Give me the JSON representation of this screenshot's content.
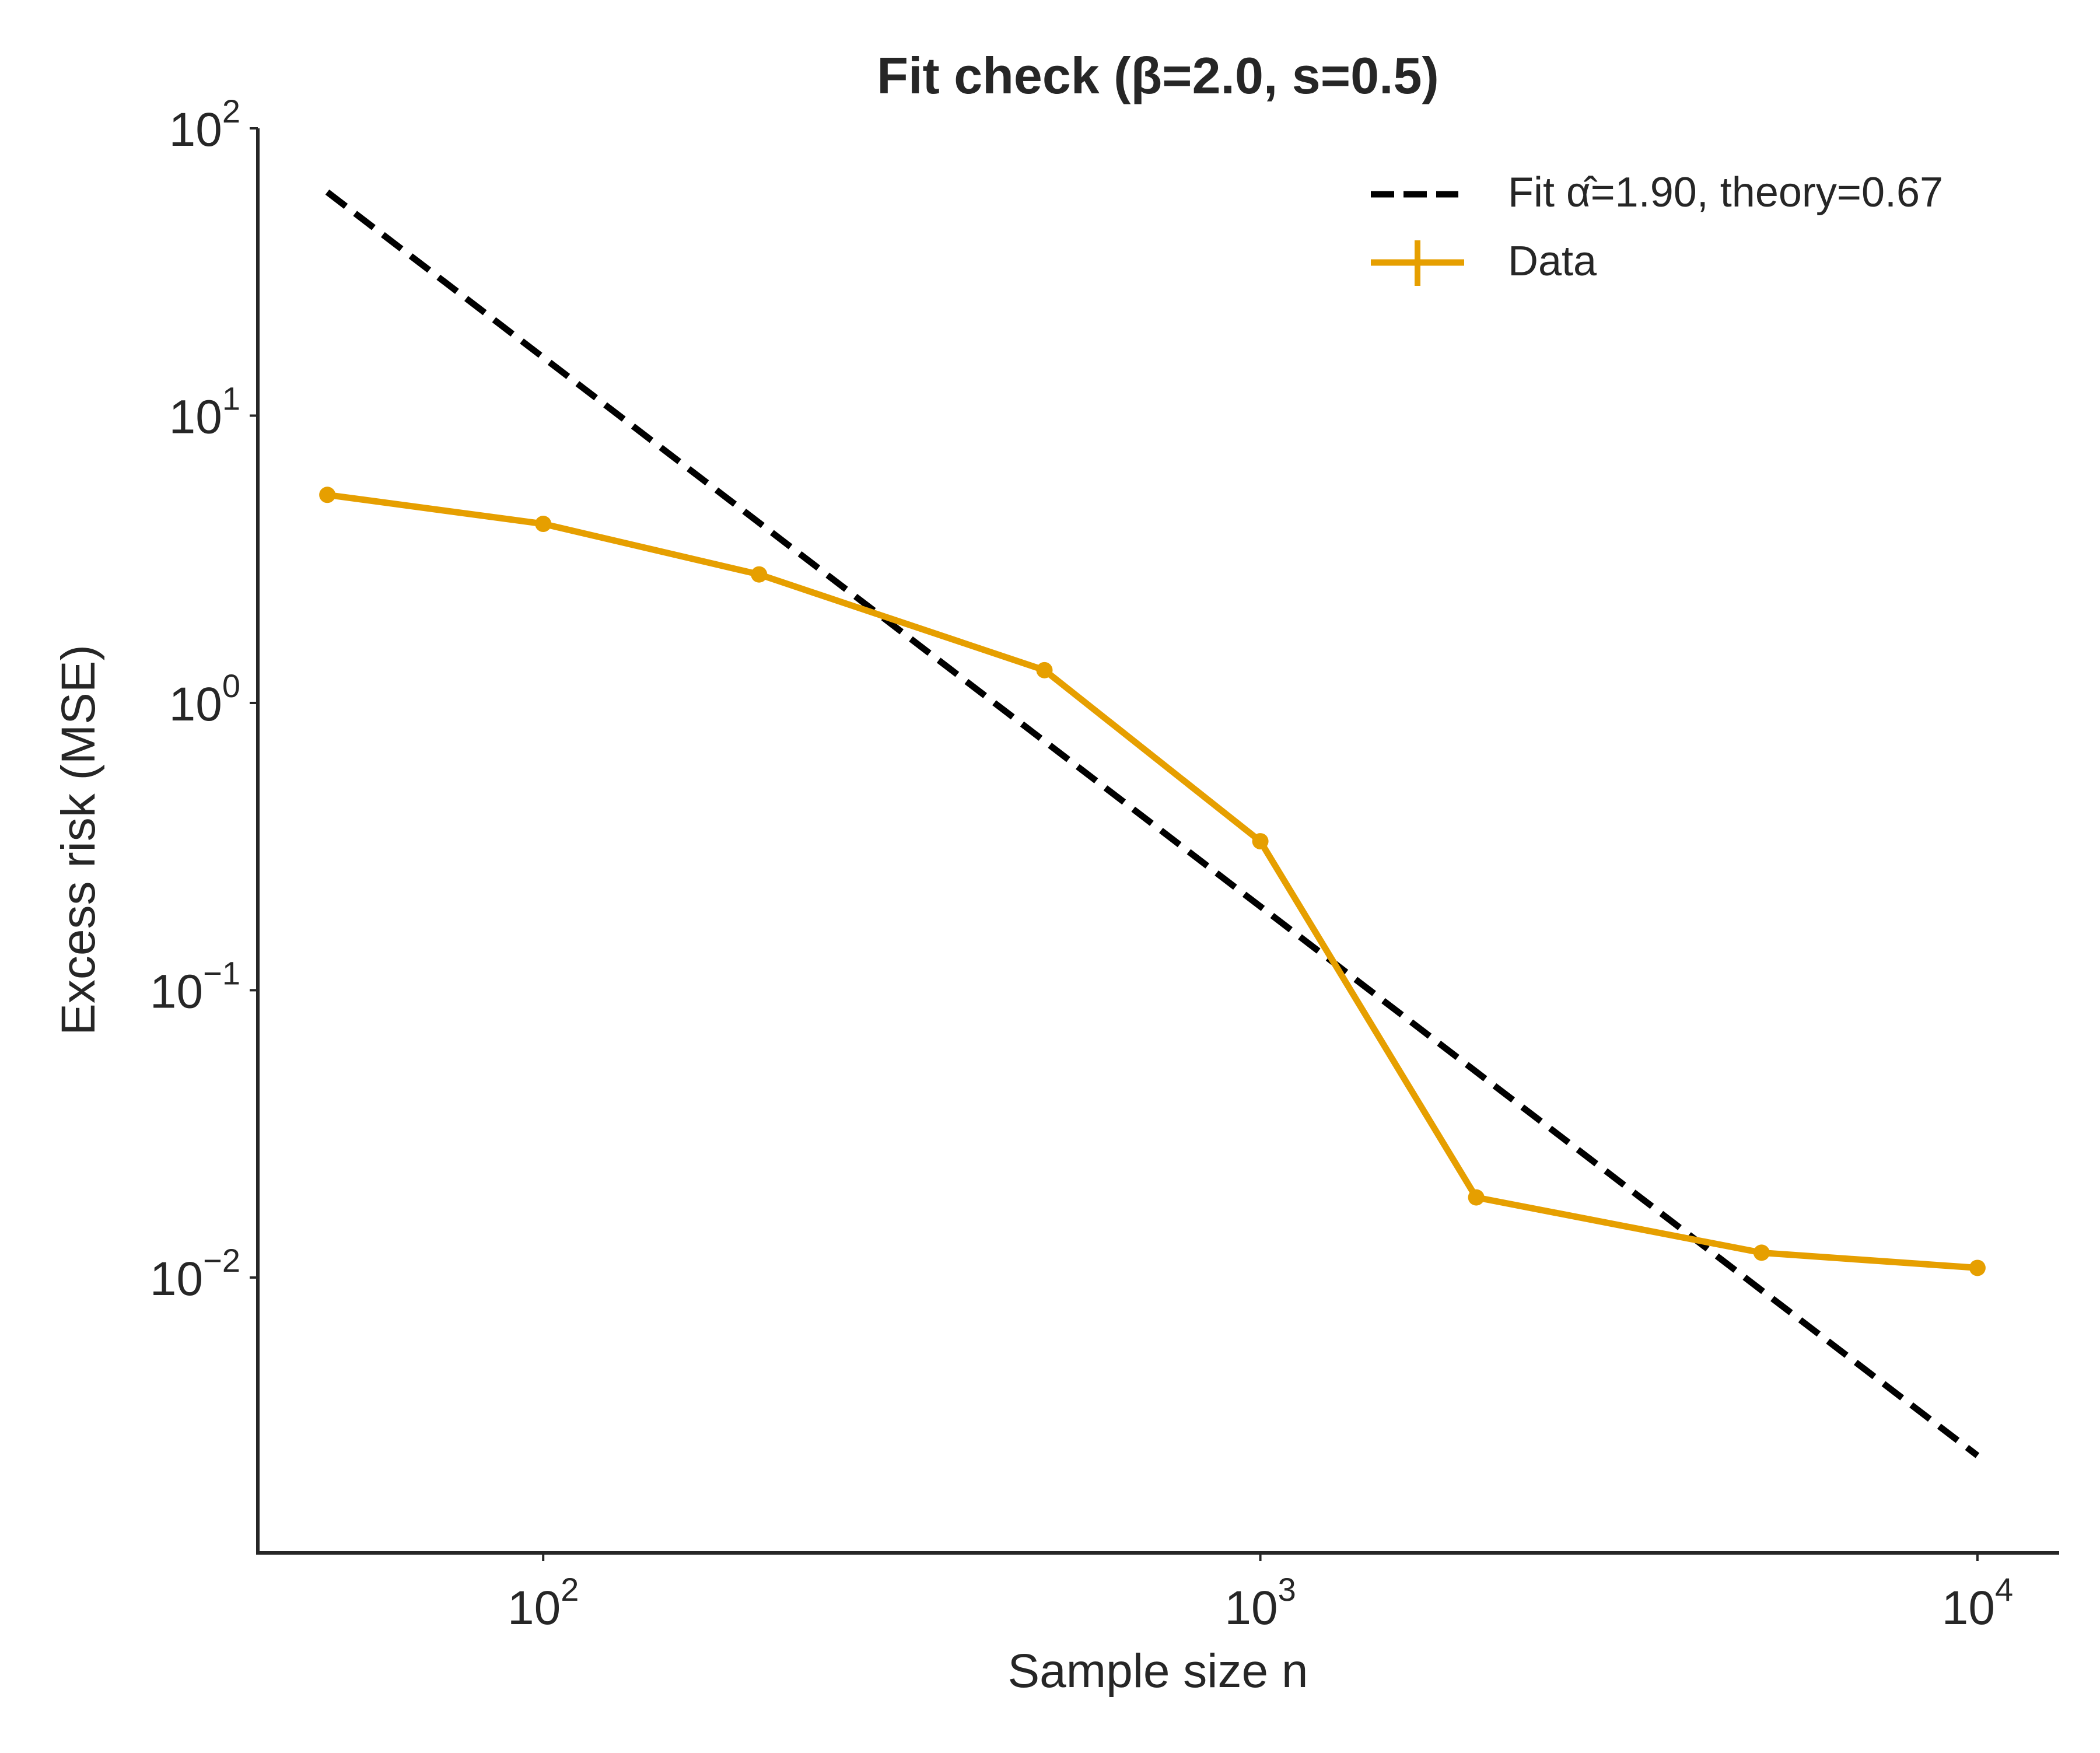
{
  "chart_data": {
    "type": "line",
    "title": "Fit check (β=2.0, s=0.5)",
    "xlabel": "Sample size n",
    "ylabel": "Excess risk (MSE)",
    "xscale": "log",
    "yscale": "log",
    "xlim": [
      40,
      13000
    ],
    "ylim": [
      0.0011,
      100
    ],
    "x_ticks": [
      {
        "value": 100,
        "base": "10",
        "exp": "2"
      },
      {
        "value": 1000,
        "base": "10",
        "exp": "3"
      },
      {
        "value": 10000,
        "base": "10",
        "exp": "4"
      }
    ],
    "y_ticks": [
      {
        "value": 100,
        "base": "10",
        "exp": "2"
      },
      {
        "value": 10,
        "base": "10",
        "exp": "1"
      },
      {
        "value": 1,
        "base": "10",
        "exp": "0"
      },
      {
        "value": 0.1,
        "base": "10",
        "exp": "−1"
      },
      {
        "value": 0.01,
        "base": "10",
        "exp": "−2"
      }
    ],
    "legend_position": "top-right",
    "series": [
      {
        "name": "Data",
        "label": "Data",
        "color": "#E69F00",
        "style": "solid",
        "markers": true,
        "x": [
          50,
          100,
          200,
          500,
          1000,
          2000,
          5000,
          10000
        ],
        "y": [
          5.3,
          4.2,
          2.8,
          1.3,
          0.33,
          0.019,
          0.0122,
          0.0108
        ]
      },
      {
        "name": "Fit",
        "label": "Fit α̂=1.90, theory=0.67",
        "color": "#000000",
        "style": "dashed",
        "markers": false,
        "x": [
          50,
          10000
        ],
        "y": [
          60,
          0.0024
        ]
      }
    ]
  }
}
